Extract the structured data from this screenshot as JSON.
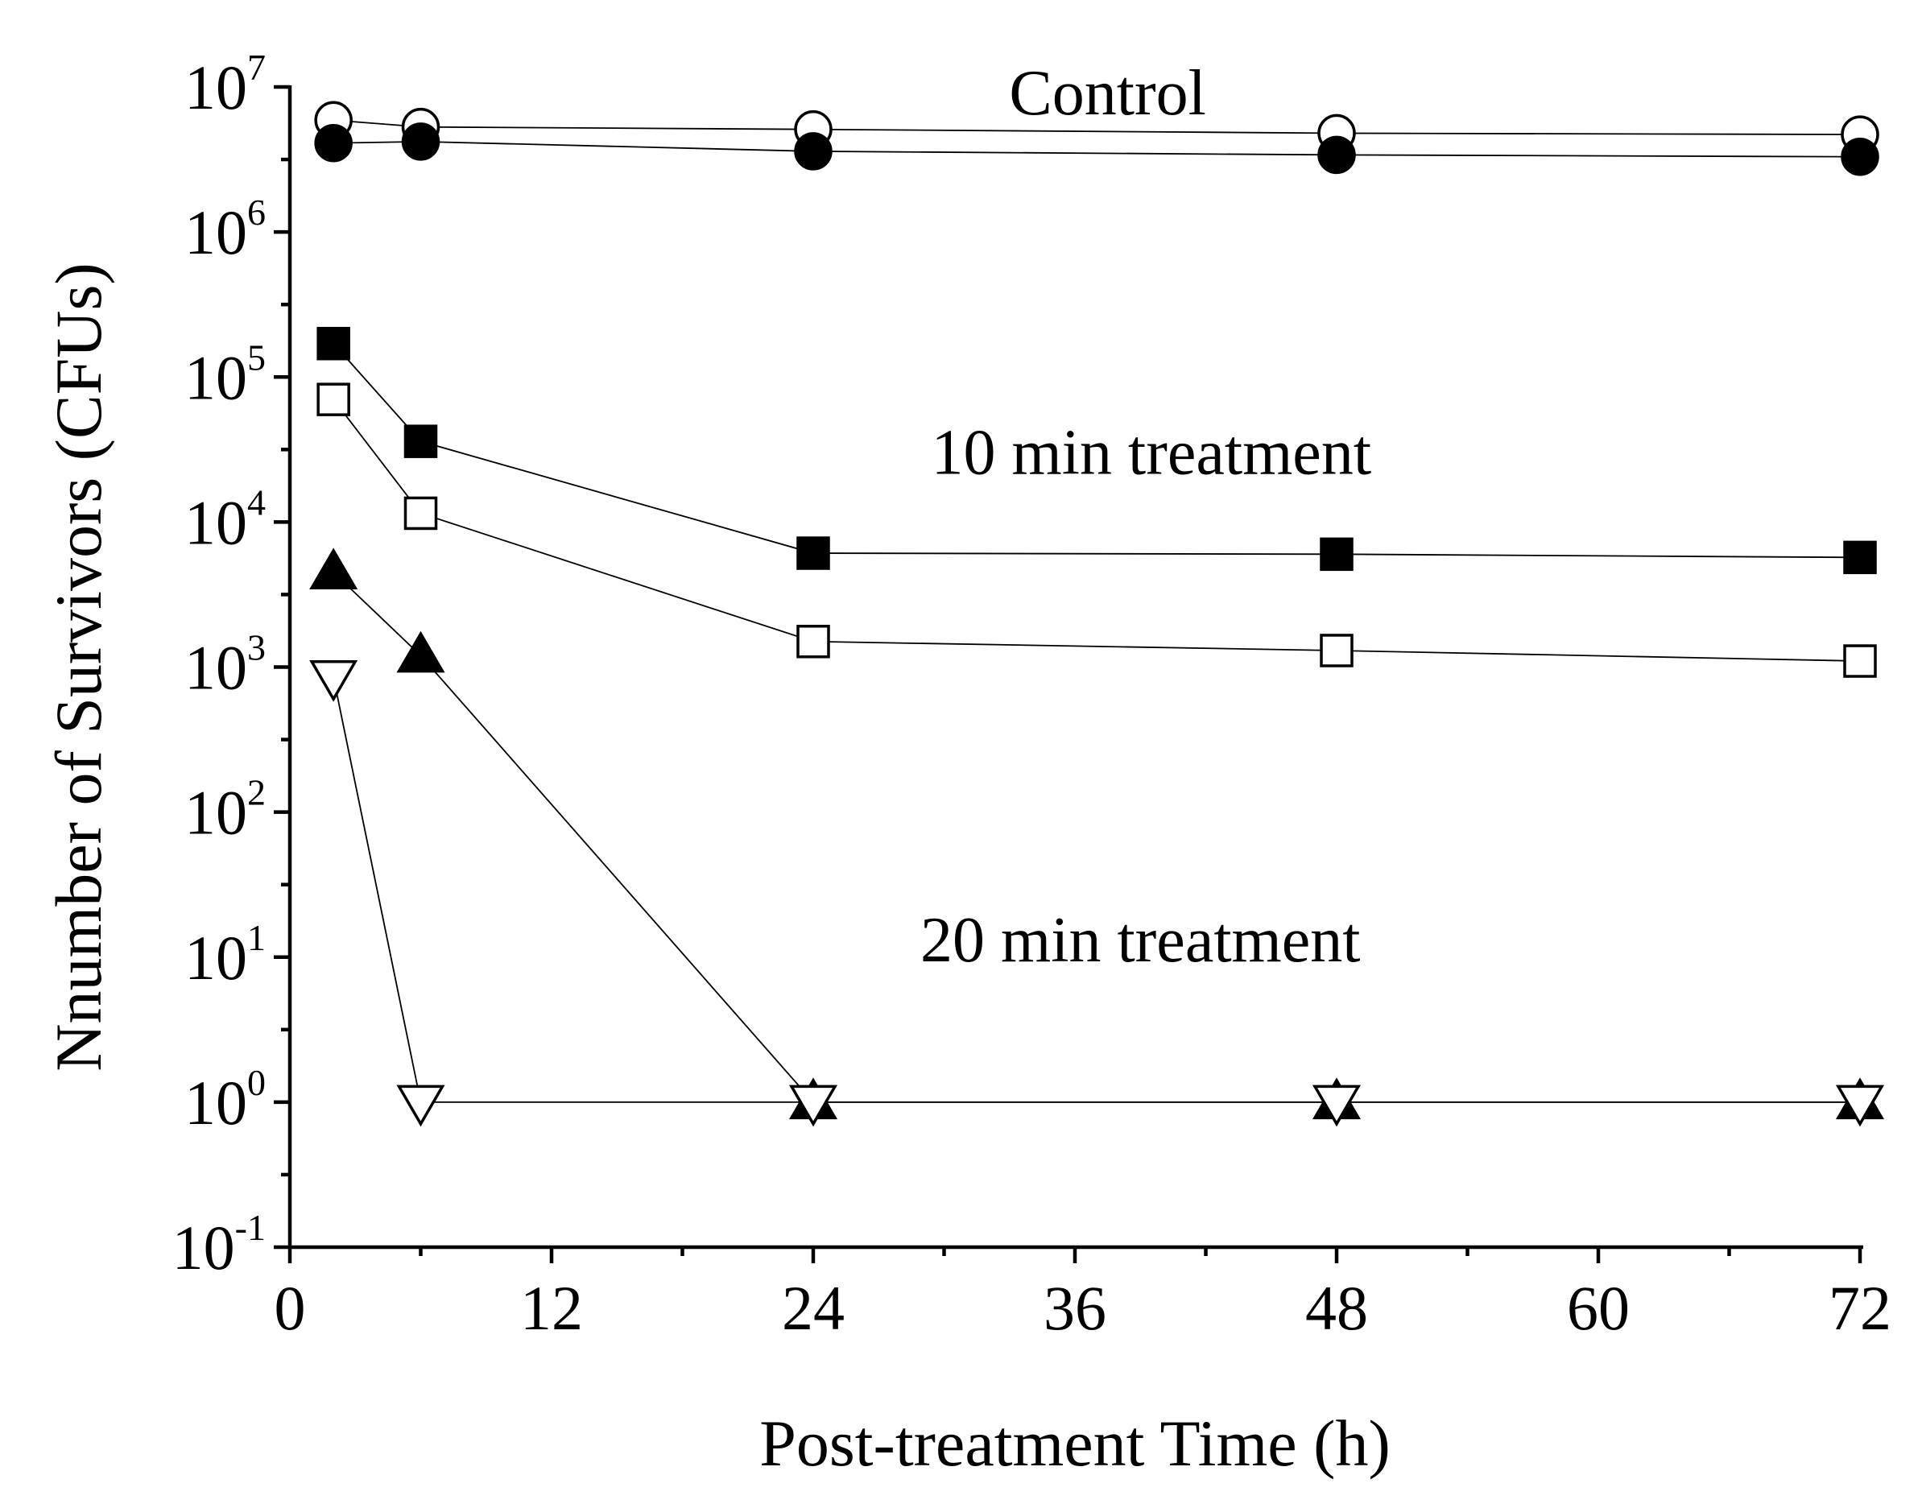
{
  "chart_data": {
    "type": "scatter",
    "xlabel": "Post-treatment Time (h)",
    "ylabel": "Nnumber of Survivors (CFUs)",
    "xlim": [
      0,
      72
    ],
    "xticks": [
      0,
      12,
      24,
      36,
      48,
      60,
      72
    ],
    "xtick_labels": [
      "0",
      "12",
      "24",
      "36",
      "48",
      "60",
      "72"
    ],
    "yscale": "log",
    "ylim": [
      0.1,
      10000000
    ],
    "ytick_exponents": [
      "-1",
      "0",
      "1",
      "2",
      "3",
      "4",
      "5",
      "6",
      "7"
    ],
    "ytick_base": "10",
    "grid": false,
    "annotations": [
      {
        "text": "Control",
        "x": 37.5,
        "y": 9000000
      },
      {
        "text": "10 min treatment",
        "x": 39.5,
        "y": 30000
      },
      {
        "text": "20 min treatment",
        "x": 39.0,
        "y": 13
      }
    ],
    "series": [
      {
        "name": "control-open-circle",
        "marker": "circle",
        "fill": "open",
        "x": [
          2,
          6,
          24,
          48,
          72
        ],
        "values": [
          5900000,
          5300000,
          5100000,
          4800000,
          4700000
        ]
      },
      {
        "name": "control-filled-circle",
        "marker": "circle",
        "fill": "filled",
        "x": [
          2,
          6,
          24,
          48,
          72
        ],
        "values": [
          4100000,
          4200000,
          3600000,
          3400000,
          3300000
        ]
      },
      {
        "name": "10min-filled-square",
        "marker": "square",
        "fill": "filled",
        "x": [
          2,
          6,
          24,
          48,
          72
        ],
        "values": [
          170000,
          36000,
          6100,
          6000,
          5700
        ]
      },
      {
        "name": "10min-open-square",
        "marker": "square",
        "fill": "open",
        "x": [
          2,
          6,
          24,
          48,
          72
        ],
        "values": [
          70000,
          11500,
          1500,
          1300,
          1100
        ]
      },
      {
        "name": "20min-filled-triangle-up",
        "marker": "triangle-up",
        "fill": "filled",
        "x": [
          2,
          6,
          24,
          48,
          72
        ],
        "values": [
          4500,
          1200,
          1,
          1,
          1
        ]
      },
      {
        "name": "20min-open-triangle-down",
        "marker": "triangle-down",
        "fill": "open",
        "x": [
          2,
          6,
          24,
          48,
          72
        ],
        "values": [
          850,
          1,
          1,
          1,
          1
        ]
      }
    ]
  }
}
